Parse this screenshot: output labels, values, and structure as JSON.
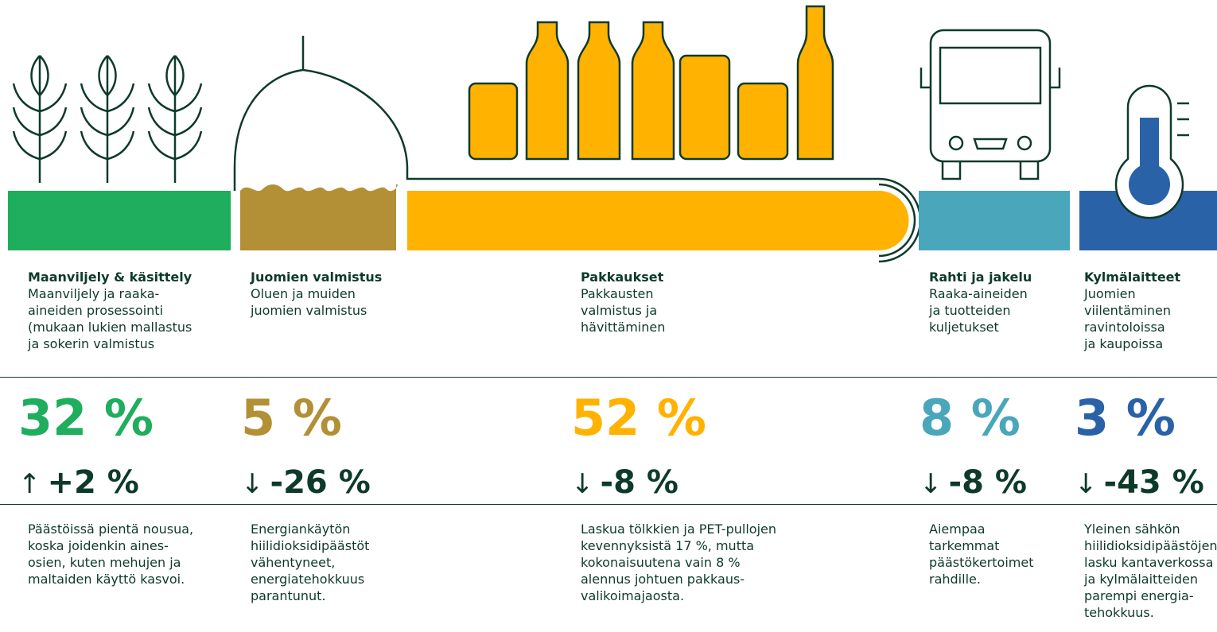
{
  "columns": [
    {
      "title": "Maanviljely & käsittely",
      "description": [
        "Maanviljely ja raaka-",
        "aineiden prosessointi",
        "(mukaan lukien mallastus",
        "ja sokerin valmistus"
      ],
      "percent": "32 %",
      "arrow": "↑",
      "change": "+2 %",
      "note": [
        "Päästöissä pientä nousua,",
        "koska joidenkin aines-",
        "osien, kuten mehujen ja",
        "maltaiden käyttö kasvoi."
      ]
    },
    {
      "title": "Juomien valmistus",
      "description": [
        "Oluen ja muiden",
        "juomien valmistus"
      ],
      "percent": "5 %",
      "arrow": "↓",
      "change": "-26 %",
      "note": [
        "Energiankäytön",
        "hiilidioksidipäästöt",
        "vähentyneet,",
        "energiatehokkuus",
        "parantunut."
      ]
    },
    {
      "title": "Pakkaukset",
      "description": [
        "Pakkausten",
        "valmistus ja",
        "hävittäminen"
      ],
      "percent": "52 %",
      "arrow": "↓",
      "change": "-8 %",
      "note": [
        "Laskua tölkkien ja PET-pullojen",
        "kevennyksistä 17 %, mutta",
        "kokonaisuutena vain 8 %",
        "alennus johtuen pakkaus-",
        "valikoimajaosta."
      ]
    },
    {
      "title": "Rahti ja jakelu",
      "description": [
        "Raaka-aineiden",
        "ja tuotteiden",
        "kuljetukset"
      ],
      "percent": "8 %",
      "arrow": "↓",
      "change": "-8 %",
      "note": [
        "Aiempaa",
        "tarkemmat",
        "päästökertoimet",
        "rahdille."
      ]
    },
    {
      "title": "Kylmälaitteet",
      "description": [
        "Juomien",
        "viilentäminen",
        "ravintoloissa",
        "ja kaupoissa"
      ],
      "percent": "3 %",
      "arrow": "↓",
      "change": "-43 %",
      "note": [
        "Yleinen sähkön",
        "hiilidioksidipäästöjen",
        "lasku kantaverkossa",
        "ja kylmälaitteiden",
        "parempi energia-",
        "tehokkuus."
      ]
    }
  ]
}
